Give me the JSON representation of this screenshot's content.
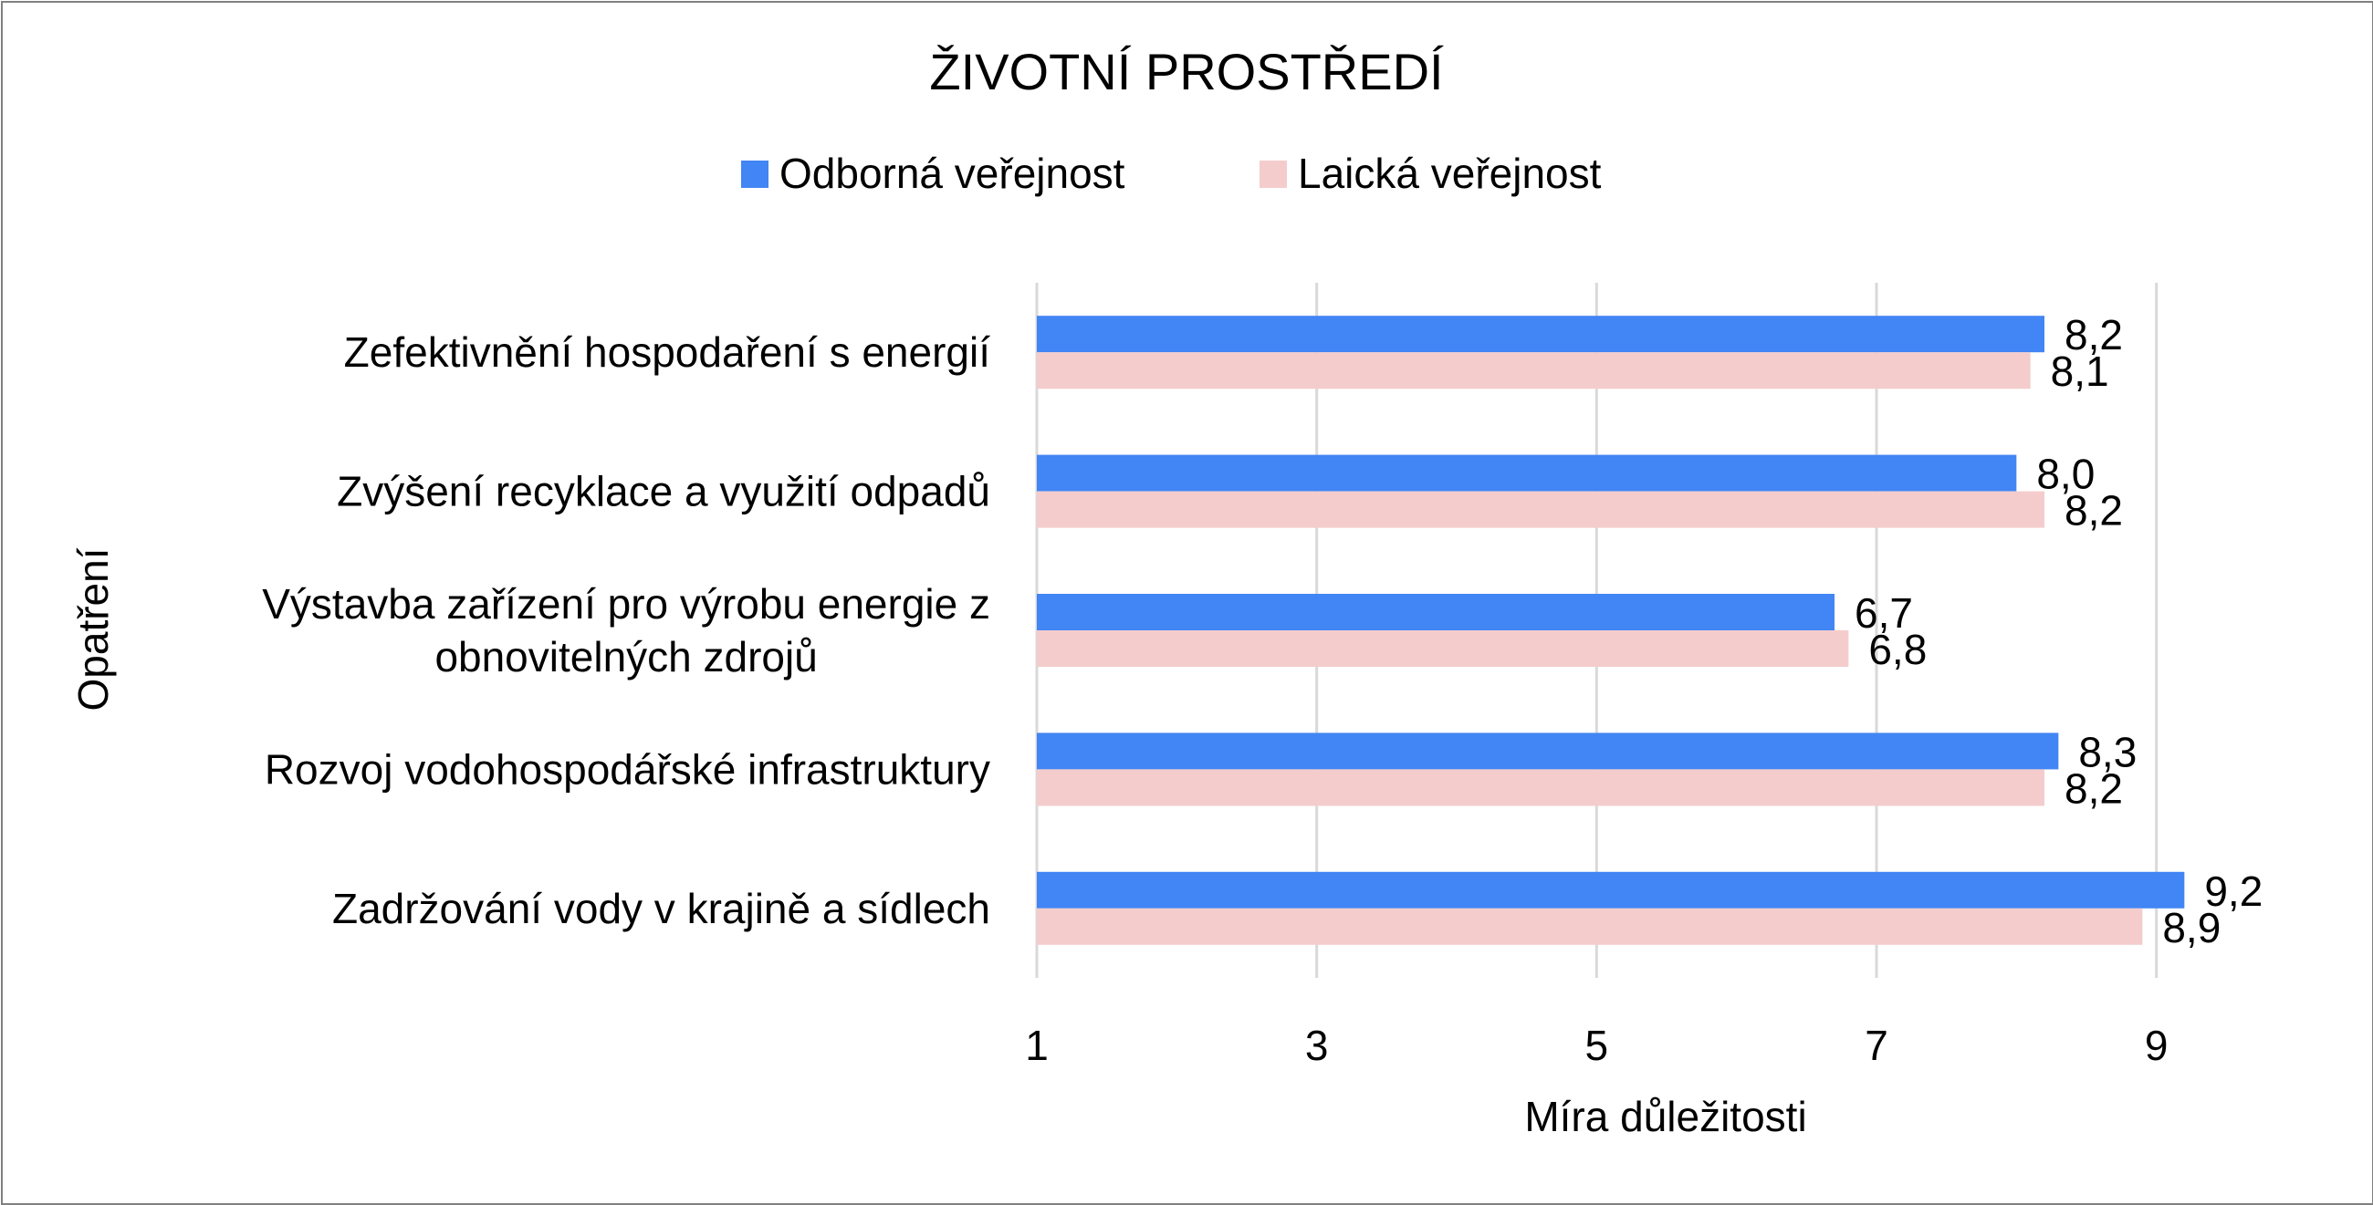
{
  "chart_data": {
    "type": "bar",
    "orientation": "horizontal",
    "title": "ŽIVOTNÍ PROSTŘEDÍ",
    "xlabel": "Míra důležitosti",
    "ylabel": "Opatření",
    "xlim": [
      1,
      10
    ],
    "xticks": [
      1,
      3,
      5,
      7,
      9
    ],
    "grid": true,
    "legend_position": "top",
    "categories": [
      [
        "Zefektivnění hospodaření s energií"
      ],
      [
        "Zvýšení recyklace a využití odpadů"
      ],
      [
        "Výstavba zařízení pro výrobu energie z",
        "obnovitelných zdrojů"
      ],
      [
        "Rozvoj vodohospodářské infrastruktury"
      ],
      [
        "Zadržování vody v krajině a sídlech"
      ]
    ],
    "series": [
      {
        "name": "Odborná veřejnost",
        "color": "#4285F4",
        "values": [
          8.2,
          8.0,
          6.7,
          8.3,
          9.2
        ],
        "labels": [
          "8,2",
          "8,0",
          "6,7",
          "8,3",
          "9,2"
        ]
      },
      {
        "name": "Laická veřejnost",
        "color": "#F4CCCC",
        "values": [
          8.1,
          8.2,
          6.8,
          8.2,
          8.9
        ],
        "labels": [
          "8,1",
          "8,2",
          "6,8",
          "8,2",
          "8,9"
        ]
      }
    ]
  }
}
